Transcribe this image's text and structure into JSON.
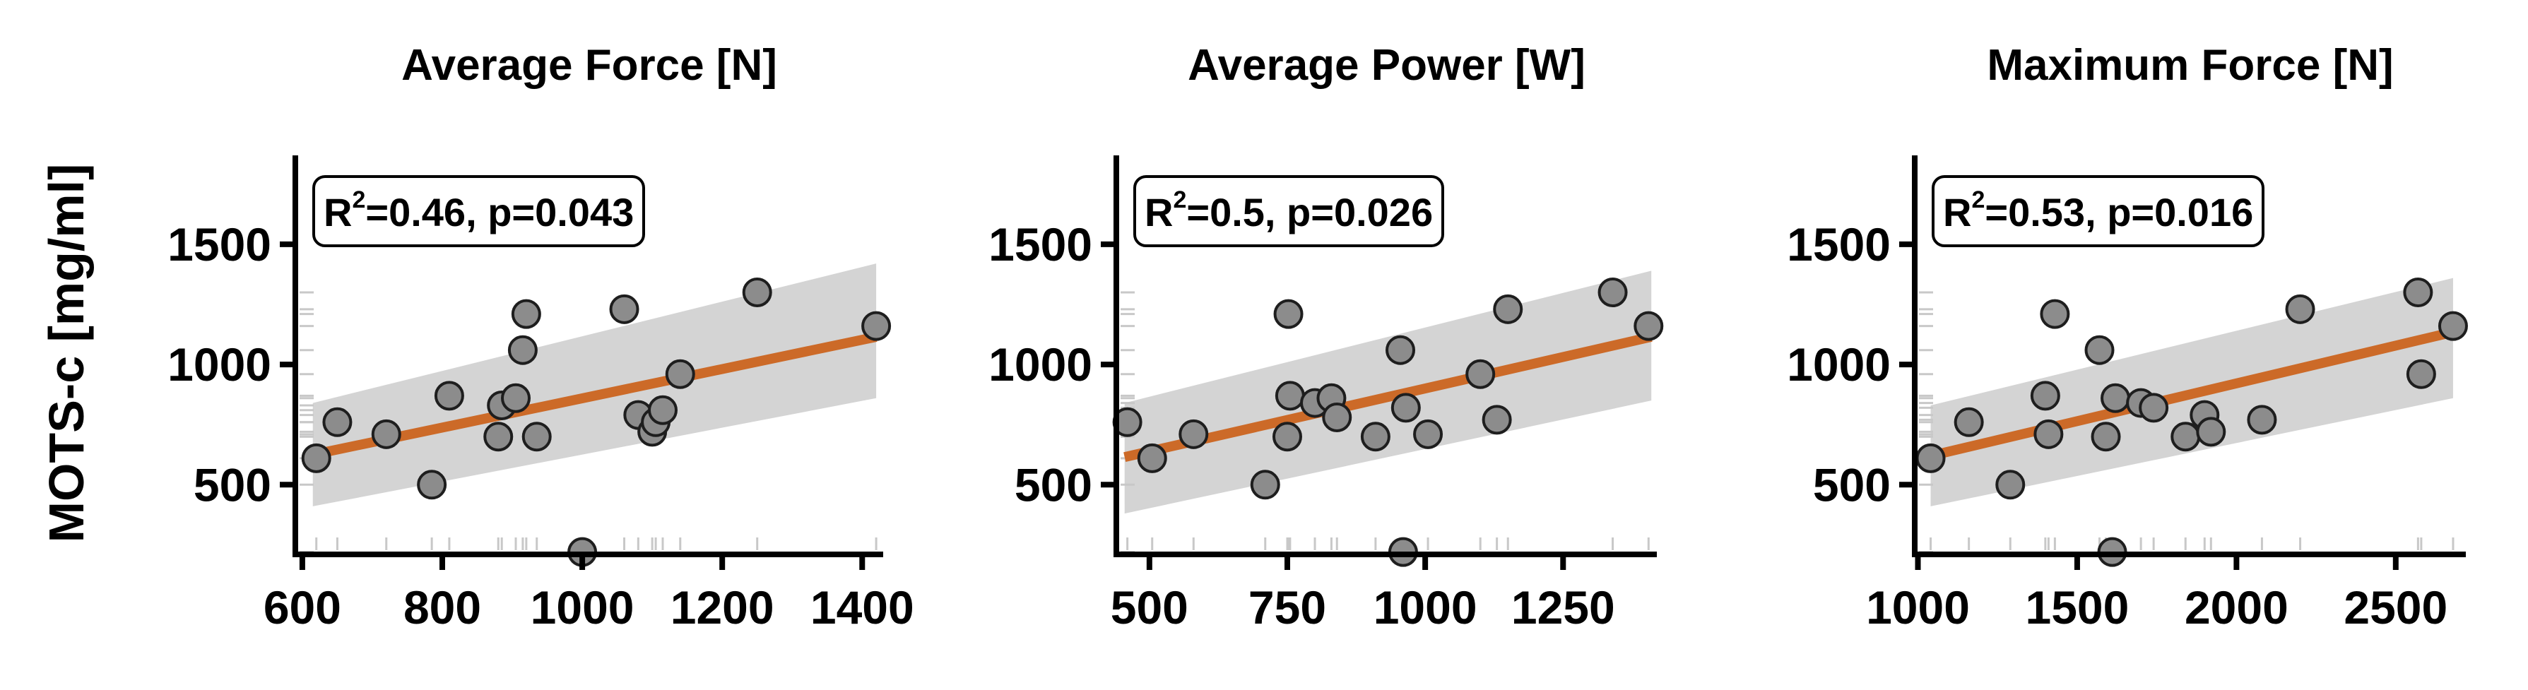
{
  "y_label": "MOTS-c [mg/ml]",
  "chart_data": [
    {
      "type": "scatter",
      "title": "Average Force [N]",
      "xlabel": "Average Force [N]",
      "ylabel": "MOTS-c [mg/ml]",
      "xlim": [
        590,
        1430
      ],
      "ylim": [
        210,
        1870
      ],
      "x_ticks": [
        600,
        800,
        1000,
        1200,
        1400
      ],
      "y_ticks": [
        500,
        1000,
        1500
      ],
      "x_tick_labels": [
        "600",
        "800",
        "1000",
        "1200",
        "1400"
      ],
      "y_tick_labels": [
        "500",
        "1000",
        "1500"
      ],
      "annotation": {
        "r_symbol": "R",
        "r_sup": "2",
        "text": "=0.46, p=0.043",
        "location": "top-left"
      },
      "fit": {
        "x": [
          615,
          1420
        ],
        "y": [
          625,
          1115
        ],
        "ci_lower": [
          410,
          860
        ],
        "ci_upper": [
          840,
          1420
        ]
      },
      "points": [
        {
          "x": 620,
          "y": 610
        },
        {
          "x": 650,
          "y": 760
        },
        {
          "x": 720,
          "y": 710
        },
        {
          "x": 785,
          "y": 500
        },
        {
          "x": 810,
          "y": 870
        },
        {
          "x": 880,
          "y": 700
        },
        {
          "x": 885,
          "y": 830
        },
        {
          "x": 905,
          "y": 860
        },
        {
          "x": 915,
          "y": 1060
        },
        {
          "x": 920,
          "y": 1210
        },
        {
          "x": 935,
          "y": 700
        },
        {
          "x": 1000,
          "y": 220
        },
        {
          "x": 1060,
          "y": 1230
        },
        {
          "x": 1080,
          "y": 790
        },
        {
          "x": 1100,
          "y": 720
        },
        {
          "x": 1105,
          "y": 760
        },
        {
          "x": 1115,
          "y": 810
        },
        {
          "x": 1140,
          "y": 960
        },
        {
          "x": 1250,
          "y": 1300
        },
        {
          "x": 1420,
          "y": 1160
        }
      ]
    },
    {
      "type": "scatter",
      "title": "Average Power [W]",
      "xlabel": "Average Power [W]",
      "ylabel": "MOTS-c [mg/ml]",
      "xlim": [
        440,
        1420
      ],
      "ylim": [
        210,
        1870
      ],
      "x_ticks": [
        500,
        750,
        1000,
        1250
      ],
      "y_ticks": [
        500,
        1000,
        1500
      ],
      "x_tick_labels": [
        "500",
        "750",
        "1000",
        "1250"
      ],
      "y_tick_labels": [
        "500",
        "1000",
        "1500"
      ],
      "annotation": {
        "r_symbol": "R",
        "r_sup": "2",
        "text": "=0.5, p=0.026",
        "location": "top-left"
      },
      "fit": {
        "x": [
          455,
          1410
        ],
        "y": [
          615,
          1115
        ],
        "ci_lower": [
          380,
          850
        ],
        "ci_upper": [
          840,
          1390
        ]
      },
      "points": [
        {
          "x": 460,
          "y": 760
        },
        {
          "x": 505,
          "y": 610
        },
        {
          "x": 580,
          "y": 710
        },
        {
          "x": 710,
          "y": 500
        },
        {
          "x": 750,
          "y": 700
        },
        {
          "x": 752,
          "y": 1210
        },
        {
          "x": 755,
          "y": 870
        },
        {
          "x": 800,
          "y": 840
        },
        {
          "x": 830,
          "y": 860
        },
        {
          "x": 840,
          "y": 780
        },
        {
          "x": 910,
          "y": 700
        },
        {
          "x": 955,
          "y": 1060
        },
        {
          "x": 960,
          "y": 220
        },
        {
          "x": 965,
          "y": 820
        },
        {
          "x": 1005,
          "y": 710
        },
        {
          "x": 1100,
          "y": 960
        },
        {
          "x": 1130,
          "y": 770
        },
        {
          "x": 1150,
          "y": 1230
        },
        {
          "x": 1340,
          "y": 1300
        },
        {
          "x": 1405,
          "y": 1160
        }
      ]
    },
    {
      "type": "scatter",
      "title": "Maximum Force [N]",
      "xlabel": "Maximum Force [N]",
      "ylabel": "MOTS-c [mg/ml]",
      "xlim": [
        990,
        2720
      ],
      "ylim": [
        210,
        1870
      ],
      "x_ticks": [
        1000,
        1500,
        2000,
        2500
      ],
      "y_ticks": [
        500,
        1000,
        1500
      ],
      "x_tick_labels": [
        "1000",
        "1500",
        "2000",
        "2500"
      ],
      "y_tick_labels": [
        "500",
        "1000",
        "1500"
      ],
      "annotation": {
        "r_symbol": "R",
        "r_sup": "2",
        "text": "=0.53, p=0.016",
        "location": "top-left"
      },
      "fit": {
        "x": [
          1040,
          2680
        ],
        "y": [
          620,
          1135
        ],
        "ci_lower": [
          410,
          860
        ],
        "ci_upper": [
          830,
          1360
        ]
      },
      "points": [
        {
          "x": 1040,
          "y": 610
        },
        {
          "x": 1160,
          "y": 760
        },
        {
          "x": 1290,
          "y": 500
        },
        {
          "x": 1400,
          "y": 870
        },
        {
          "x": 1410,
          "y": 710
        },
        {
          "x": 1430,
          "y": 1210
        },
        {
          "x": 1570,
          "y": 1060
        },
        {
          "x": 1590,
          "y": 700
        },
        {
          "x": 1610,
          "y": 220
        },
        {
          "x": 1620,
          "y": 860
        },
        {
          "x": 1700,
          "y": 840
        },
        {
          "x": 1740,
          "y": 820
        },
        {
          "x": 1840,
          "y": 700
        },
        {
          "x": 1900,
          "y": 790
        },
        {
          "x": 1920,
          "y": 720
        },
        {
          "x": 2080,
          "y": 770
        },
        {
          "x": 2200,
          "y": 1230
        },
        {
          "x": 2570,
          "y": 1300
        },
        {
          "x": 2580,
          "y": 960
        },
        {
          "x": 2680,
          "y": 1160
        }
      ]
    }
  ]
}
